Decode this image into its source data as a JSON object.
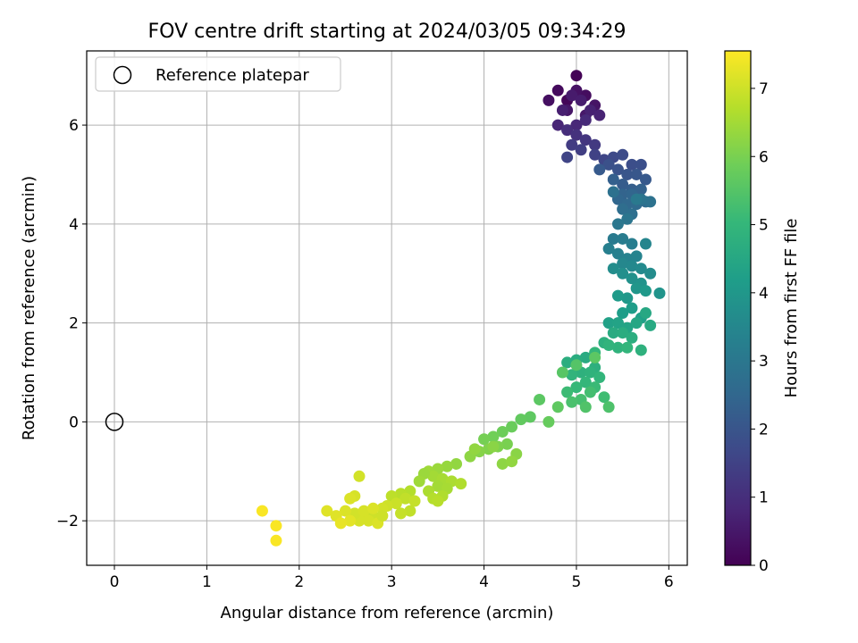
{
  "chart_data": {
    "type": "scatter",
    "title": "FOV centre drift starting at 2024/03/05 09:34:29",
    "xlabel": "Angular distance from reference (arcmin)",
    "ylabel": "Rotation from reference (arcmin)",
    "xlim": [
      -0.3,
      6.2
    ],
    "ylim": [
      -2.9,
      7.5
    ],
    "xticks": [
      0,
      1,
      2,
      3,
      4,
      5,
      6
    ],
    "yticks": [
      -2,
      0,
      2,
      4,
      6
    ],
    "xtick_labels": [
      "0",
      "1",
      "2",
      "3",
      "4",
      "5",
      "6"
    ],
    "ytick_labels": [
      "−2",
      "0",
      "2",
      "4",
      "6"
    ],
    "grid": true,
    "legend": {
      "placement": "top-left",
      "entries": [
        "Reference platepar"
      ]
    },
    "reference_point": {
      "x": 0,
      "y": 0,
      "marker": "open-circle",
      "color": "#000000"
    },
    "colorbar": {
      "label": "Hours from first FF file",
      "range": [
        0,
        7.55
      ],
      "ticks": [
        0,
        1,
        2,
        3,
        4,
        5,
        6,
        7
      ],
      "tick_labels": [
        "0",
        "1",
        "2",
        "3",
        "4",
        "5",
        "6",
        "7"
      ],
      "colormap": "viridis"
    },
    "series": [
      {
        "x": [
          5.0,
          4.9,
          4.8,
          5.1,
          4.7,
          5.0,
          5.2,
          4.9,
          5.1,
          4.95,
          5.05,
          4.85,
          5.15,
          5.25,
          4.8,
          5.0,
          5.1,
          4.9,
          5.0,
          5.1,
          5.2,
          4.95,
          5.05,
          5.2,
          4.9,
          5.3,
          5.4,
          5.5,
          5.6,
          5.7,
          5.35,
          5.45,
          5.55,
          5.65,
          5.75,
          5.25,
          5.5,
          5.6,
          5.4,
          5.7,
          5.5,
          5.6,
          5.45,
          5.55,
          5.65,
          5.75,
          5.5,
          5.6,
          5.4,
          5.8,
          5.7,
          5.55,
          5.45,
          5.65,
          5.4,
          5.5,
          5.6,
          5.35,
          5.45,
          5.55,
          5.65,
          5.75,
          5.5,
          5.6,
          5.7,
          5.8,
          5.4,
          5.5,
          5.6,
          5.7,
          5.9,
          5.65,
          5.55,
          5.75,
          5.45,
          5.6,
          5.5,
          5.7,
          5.35,
          5.45,
          5.55,
          5.65,
          5.75,
          5.8,
          5.4,
          5.5,
          5.6,
          5.3,
          5.7,
          5.45,
          5.35,
          5.55,
          5.2,
          5.1,
          5.0,
          4.9,
          5.2,
          5.05,
          5.15,
          4.95,
          5.25,
          5.1,
          5.0,
          5.2,
          4.9,
          5.3,
          5.15,
          5.05,
          4.95,
          5.35,
          5.1,
          5.0,
          4.85,
          5.2,
          4.8,
          4.6,
          4.5,
          4.4,
          4.7,
          4.3,
          4.2,
          4.1,
          4.0,
          4.25,
          4.15,
          4.05,
          3.95,
          4.35,
          3.85,
          3.9,
          4.1,
          4.2,
          4.3,
          3.7,
          3.6,
          3.5,
          3.4,
          3.45,
          3.55,
          3.65,
          3.75,
          3.5,
          3.6,
          3.4,
          3.55,
          3.45,
          3.35,
          3.3,
          3.5,
          3.2,
          3.1,
          3.0,
          3.15,
          3.25,
          3.05,
          2.95,
          2.9,
          3.2,
          3.1,
          2.8,
          2.7,
          2.75,
          2.85,
          2.65,
          2.9,
          2.6,
          2.7,
          2.8,
          2.5,
          2.4,
          2.55,
          2.45,
          2.3,
          2.6,
          2.65,
          2.55,
          1.6,
          1.75,
          1.75
        ],
        "y": [
          7.0,
          6.5,
          6.7,
          6.6,
          6.5,
          6.7,
          6.4,
          6.3,
          6.2,
          6.6,
          6.5,
          6.3,
          6.3,
          6.2,
          6.0,
          6.0,
          6.1,
          5.9,
          5.8,
          5.7,
          5.6,
          5.6,
          5.5,
          5.4,
          5.35,
          5.3,
          5.35,
          5.4,
          5.2,
          5.2,
          5.2,
          5.1,
          5.0,
          5.0,
          4.9,
          5.1,
          4.8,
          4.7,
          4.9,
          4.7,
          4.6,
          4.6,
          4.5,
          4.4,
          4.4,
          4.45,
          4.3,
          4.2,
          4.65,
          4.45,
          4.5,
          4.1,
          4.0,
          4.5,
          3.7,
          3.7,
          3.6,
          3.5,
          3.4,
          3.3,
          3.35,
          3.6,
          3.2,
          3.15,
          3.1,
          3.0,
          3.1,
          3.0,
          2.9,
          2.8,
          2.6,
          2.7,
          2.5,
          2.65,
          2.55,
          2.3,
          2.2,
          2.1,
          2.0,
          2.0,
          1.9,
          2.0,
          2.2,
          1.95,
          1.8,
          1.8,
          1.7,
          1.6,
          1.45,
          1.5,
          1.55,
          1.5,
          1.4,
          1.3,
          1.25,
          1.2,
          1.1,
          1.0,
          1.0,
          0.95,
          0.9,
          0.8,
          0.7,
          0.7,
          0.6,
          0.5,
          0.6,
          0.45,
          0.4,
          0.3,
          0.3,
          1.15,
          1.0,
          1.3,
          0.3,
          0.45,
          0.1,
          0.05,
          0.0,
          -0.1,
          -0.2,
          -0.3,
          -0.35,
          -0.45,
          -0.5,
          -0.55,
          -0.6,
          -0.65,
          -0.7,
          -0.55,
          -0.5,
          -0.85,
          -0.8,
          -0.85,
          -0.9,
          -0.95,
          -1.0,
          -1.1,
          -1.15,
          -1.2,
          -1.25,
          -1.3,
          -1.35,
          -1.4,
          -1.5,
          -1.55,
          -1.05,
          -1.2,
          -1.6,
          -1.4,
          -1.45,
          -1.5,
          -1.55,
          -1.6,
          -1.65,
          -1.7,
          -1.75,
          -1.8,
          -1.85,
          -1.9,
          -1.95,
          -2.0,
          -2.05,
          -2.0,
          -1.9,
          -1.85,
          -1.8,
          -1.75,
          -1.8,
          -1.9,
          -2.0,
          -2.05,
          -1.8,
          -1.5,
          -1.1,
          -1.55,
          -1.8,
          -2.1,
          -2.4
        ],
        "t": [
          0.05,
          0.1,
          0.2,
          0.25,
          0.3,
          0.35,
          0.4,
          0.45,
          0.5,
          0.55,
          0.6,
          0.65,
          0.7,
          0.75,
          0.8,
          0.85,
          0.9,
          1.0,
          1.1,
          1.2,
          1.3,
          1.35,
          1.4,
          1.5,
          1.55,
          1.6,
          1.7,
          1.75,
          1.8,
          1.85,
          1.9,
          1.95,
          2.0,
          2.05,
          2.1,
          2.15,
          2.2,
          2.25,
          2.3,
          2.35,
          2.4,
          2.45,
          2.5,
          2.55,
          2.6,
          2.65,
          2.7,
          2.75,
          2.8,
          2.85,
          2.9,
          2.95,
          3.0,
          3.05,
          3.1,
          3.15,
          3.2,
          3.25,
          3.3,
          3.35,
          3.4,
          3.45,
          3.5,
          3.55,
          3.6,
          3.65,
          3.7,
          3.75,
          3.8,
          3.85,
          3.9,
          3.95,
          4.0,
          4.05,
          4.1,
          4.15,
          4.2,
          4.25,
          4.3,
          4.35,
          4.4,
          4.45,
          4.5,
          4.55,
          4.6,
          4.65,
          4.7,
          4.75,
          4.8,
          4.85,
          4.9,
          4.95,
          5.0,
          4.6,
          4.65,
          4.7,
          4.75,
          4.8,
          4.85,
          4.9,
          4.95,
          5.0,
          5.05,
          5.1,
          5.15,
          5.2,
          5.25,
          5.3,
          5.35,
          5.4,
          5.45,
          5.5,
          5.55,
          5.6,
          5.65,
          5.6,
          5.65,
          5.7,
          5.75,
          5.8,
          5.85,
          5.9,
          5.95,
          6.0,
          6.05,
          6.1,
          6.15,
          6.2,
          6.25,
          6.3,
          6.2,
          6.25,
          6.3,
          6.3,
          6.35,
          6.4,
          6.45,
          6.5,
          6.55,
          6.6,
          6.65,
          6.5,
          6.55,
          6.6,
          6.65,
          6.7,
          6.4,
          6.45,
          6.75,
          6.7,
          6.75,
          6.8,
          6.85,
          6.9,
          6.95,
          7.0,
          7.05,
          6.85,
          6.9,
          7.0,
          7.05,
          7.1,
          7.15,
          7.1,
          7.0,
          7.05,
          7.1,
          7.15,
          7.15,
          7.2,
          7.25,
          7.3,
          7.2,
          7.1,
          7.05,
          7.15,
          7.5,
          7.5,
          7.5
        ]
      }
    ]
  }
}
